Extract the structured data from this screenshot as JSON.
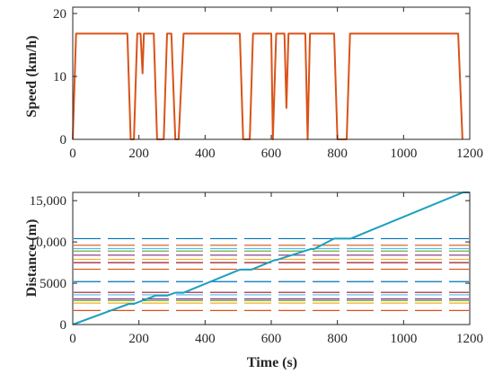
{
  "chart_data": [
    {
      "type": "line",
      "ylabel": "Speed (km/h)",
      "xlim": [
        0,
        1200
      ],
      "ylim": [
        0,
        21
      ],
      "xticks": [
        "0",
        "200",
        "400",
        "600",
        "800",
        "1000",
        "1200"
      ],
      "yticks": [
        "0",
        "10",
        "20"
      ],
      "xtick_values": [
        0,
        200,
        400,
        600,
        800,
        1000,
        1200
      ],
      "ytick_values": [
        0,
        10,
        20
      ],
      "line_color": "#d95319",
      "series": [
        {
          "x": [
            0,
            10,
            165,
            175,
            185,
            195,
            205,
            211,
            215,
            225,
            245,
            255,
            275,
            285,
            298,
            310,
            320,
            335,
            505,
            515,
            535,
            545,
            600,
            605,
            615,
            628,
            640,
            646,
            652,
            660,
            670,
            703,
            710,
            717,
            725,
            748,
            762,
            790,
            800,
            828,
            838,
            1165,
            1178
          ],
          "y": [
            0,
            16.8,
            16.8,
            0,
            0,
            16.8,
            16.8,
            10.5,
            16.8,
            16.8,
            16.8,
            0,
            0,
            16.8,
            16.8,
            0,
            0,
            16.8,
            16.8,
            0,
            0,
            16.8,
            16.8,
            0,
            16.8,
            16.8,
            16.8,
            5,
            16.8,
            16.8,
            16.8,
            16.8,
            0,
            16.8,
            16.8,
            16.8,
            16.8,
            16.8,
            0,
            0,
            16.8,
            16.8,
            0
          ]
        }
      ],
      "grid": false
    },
    {
      "type": "line",
      "xlabel": "Time (s)",
      "ylabel": "Distance (m)",
      "xlim": [
        0,
        1200
      ],
      "ylim": [
        0,
        16000
      ],
      "xticks": [
        "0",
        "200",
        "400",
        "600",
        "800",
        "1000",
        "1200"
      ],
      "yticks": [
        "0",
        "5000",
        "10,000",
        "15,000"
      ],
      "xtick_values": [
        0,
        200,
        400,
        600,
        800,
        1000,
        1200
      ],
      "ytick_values": [
        0,
        5000,
        10000,
        15000
      ],
      "trajectory": {
        "color": "#1a9fbf",
        "x": [
          0,
          170,
          185,
          250,
          285,
          310,
          335,
          505,
          540,
          610,
          615,
          720,
          730,
          790,
          840,
          1180,
          1200
        ],
        "y": [
          0,
          2500,
          2500,
          3500,
          3500,
          3850,
          3850,
          6650,
          6650,
          7800,
          7800,
          9150,
          9150,
          10400,
          10400,
          16000,
          16000
        ]
      },
      "signal_lines": [
        {
          "y": 10400,
          "color": "#0072bd"
        },
        {
          "y": 9600,
          "color": "#d95319"
        },
        {
          "y": 9200,
          "color": "#4dbeee"
        },
        {
          "y": 8900,
          "color": "#77ac30"
        },
        {
          "y": 8400,
          "color": "#7e2f8e"
        },
        {
          "y": 7900,
          "color": "#edb120"
        },
        {
          "y": 7500,
          "color": "#a2142f"
        },
        {
          "y": 6700,
          "color": "#d95319"
        },
        {
          "y": 5200,
          "color": "#0072bd"
        },
        {
          "y": 3900,
          "color": "#a2142f"
        },
        {
          "y": 3600,
          "color": "#4dbeee"
        },
        {
          "y": 3100,
          "color": "#7e2f8e"
        },
        {
          "y": 2900,
          "color": "#77ac30"
        },
        {
          "y": 2600,
          "color": "#edb120"
        },
        {
          "y": 1700,
          "color": "#d95319"
        }
      ],
      "grid": false
    }
  ]
}
